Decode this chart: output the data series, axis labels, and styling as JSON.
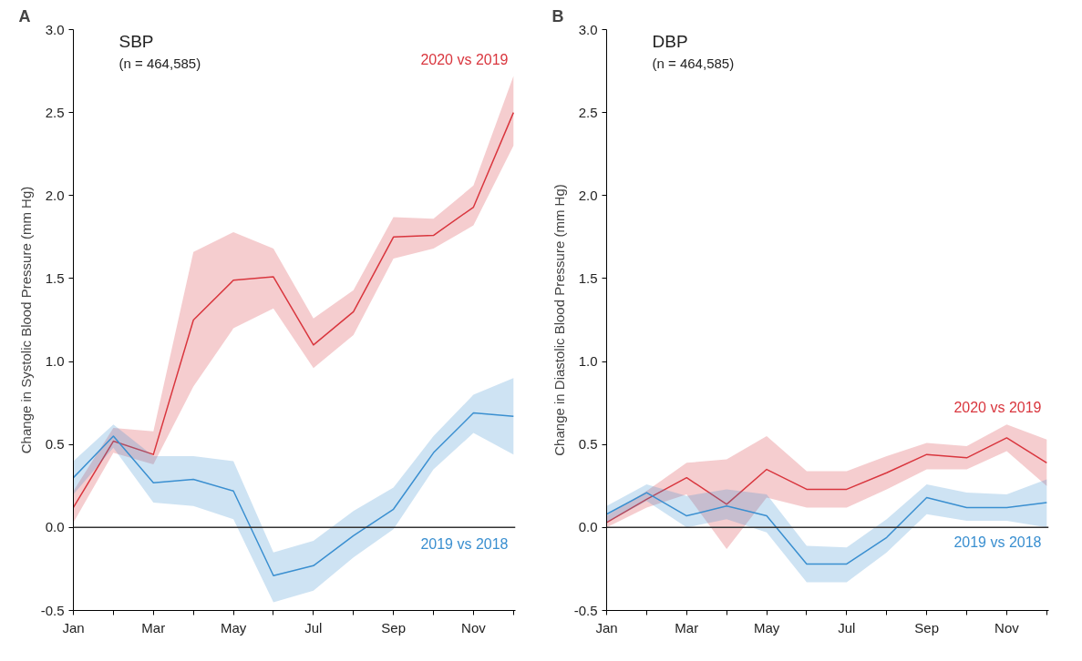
{
  "chart_data": [
    {
      "type": "line",
      "title": "SBP",
      "subtitle": "(n = 464,585)",
      "ylabel": "Change in Systolic Blood Pressure (mm Hg)",
      "annotations": [
        "A"
      ],
      "categories": [
        "Jan",
        null,
        "Mar",
        null,
        "May",
        null,
        "Jul",
        null,
        "Sep",
        null,
        "Nov",
        null
      ],
      "ylim": [
        -0.5,
        3.0
      ],
      "yticks": [
        {
          "value": -0.5,
          "label": "-0.5"
        },
        {
          "value": 0,
          "label": "0.0"
        },
        {
          "value": 0.5,
          "label": "0.5"
        },
        {
          "value": 1,
          "label": "1.0"
        },
        {
          "value": 1.5,
          "label": "1.5"
        },
        {
          "value": 2,
          "label": "2.0"
        },
        {
          "value": 2.5,
          "label": "2.5"
        },
        {
          "value": 3,
          "label": "3.0"
        }
      ],
      "grid": false,
      "legend": false,
      "ref_lines": [
        {
          "axis": "y",
          "value": 0,
          "color": "#333333"
        }
      ],
      "series": [
        {
          "name": "2020 vs 2019",
          "color": "#d9363e",
          "values": [
            0.12,
            0.52,
            0.44,
            1.25,
            1.49,
            1.51,
            1.1,
            1.3,
            1.75,
            1.76,
            1.93,
            2.5
          ],
          "lower": [
            0.03,
            0.45,
            0.38,
            0.85,
            1.2,
            1.32,
            0.96,
            1.16,
            1.62,
            1.68,
            1.82,
            2.3
          ],
          "upper": [
            0.22,
            0.6,
            0.58,
            1.66,
            1.78,
            1.68,
            1.26,
            1.43,
            1.87,
            1.86,
            2.06,
            2.72
          ]
        },
        {
          "name": "2019 vs 2018",
          "color": "#3a8fd0",
          "values": [
            0.3,
            0.55,
            0.27,
            0.29,
            0.22,
            -0.29,
            -0.23,
            -0.05,
            0.11,
            0.45,
            0.69,
            0.67
          ],
          "lower": [
            0.2,
            0.48,
            0.15,
            0.13,
            0.05,
            -0.45,
            -0.38,
            -0.18,
            -0.01,
            0.35,
            0.57,
            0.44
          ],
          "upper": [
            0.4,
            0.62,
            0.43,
            0.43,
            0.4,
            -0.15,
            -0.08,
            0.1,
            0.24,
            0.55,
            0.8,
            0.9
          ]
        }
      ]
    },
    {
      "type": "line",
      "title": "DBP",
      "subtitle": "(n = 464,585)",
      "ylabel": "Change in Diastolic Blood Pressure (mm Hg)",
      "annotations": [
        "B"
      ],
      "categories": [
        "Jan",
        null,
        "Mar",
        null,
        "May",
        null,
        "Jul",
        null,
        "Sep",
        null,
        "Nov",
        null
      ],
      "ylim": [
        -0.5,
        3.0
      ],
      "yticks": [
        {
          "value": -0.5,
          "label": "-0.5"
        },
        {
          "value": 0,
          "label": "0.0"
        },
        {
          "value": 0.5,
          "label": "0.5"
        },
        {
          "value": 1,
          "label": "1.0"
        },
        {
          "value": 1.5,
          "label": "1.5"
        },
        {
          "value": 2,
          "label": "2.0"
        },
        {
          "value": 2.5,
          "label": "2.5"
        },
        {
          "value": 3,
          "label": "3.0"
        }
      ],
      "grid": false,
      "legend": false,
      "ref_lines": [
        {
          "axis": "y",
          "value": 0,
          "color": "#333333"
        }
      ],
      "series": [
        {
          "name": "2020 vs 2019",
          "color": "#d9363e",
          "values": [
            0.03,
            0.17,
            0.3,
            0.14,
            0.35,
            0.23,
            0.23,
            0.33,
            0.44,
            0.42,
            0.54,
            0.39
          ],
          "lower": [
            0.0,
            0.12,
            0.2,
            -0.13,
            0.18,
            0.12,
            0.12,
            0.23,
            0.35,
            0.35,
            0.46,
            0.25
          ],
          "upper": [
            0.07,
            0.22,
            0.39,
            0.41,
            0.55,
            0.34,
            0.34,
            0.43,
            0.51,
            0.49,
            0.62,
            0.53
          ]
        },
        {
          "name": "2019 vs 2018",
          "color": "#3a8fd0",
          "values": [
            0.08,
            0.21,
            0.07,
            0.13,
            0.07,
            -0.22,
            -0.22,
            -0.06,
            0.18,
            0.12,
            0.12,
            0.15
          ],
          "lower": [
            0.03,
            0.16,
            0.0,
            0.05,
            -0.03,
            -0.33,
            -0.33,
            -0.15,
            0.08,
            0.04,
            0.04,
            0.0
          ],
          "upper": [
            0.13,
            0.26,
            0.19,
            0.23,
            0.2,
            -0.11,
            -0.12,
            0.05,
            0.26,
            0.21,
            0.2,
            0.29
          ]
        }
      ]
    }
  ]
}
